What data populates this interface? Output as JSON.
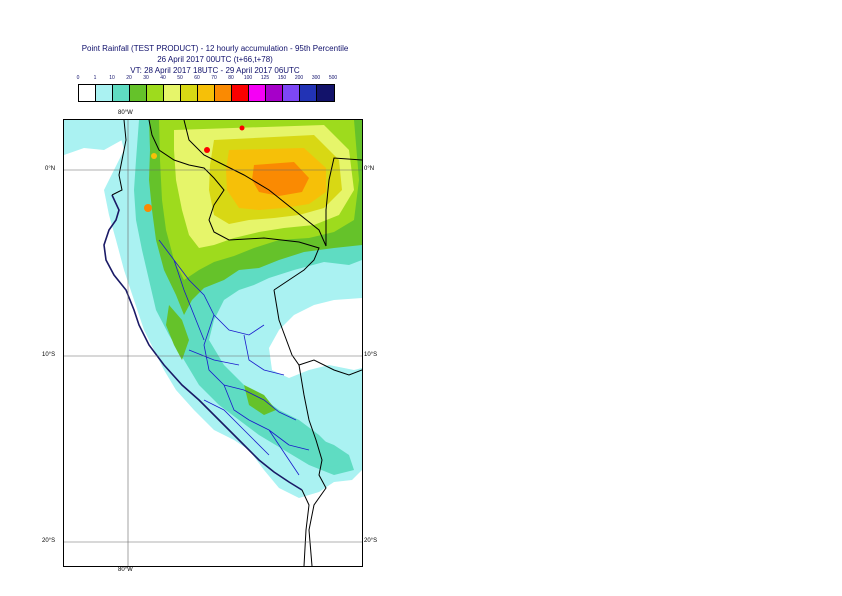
{
  "header": {
    "line1": "Point Rainfall (TEST PRODUCT) - 12 hourly accumulation - 95th Percentile",
    "line2": "26 April 2017 00UTC (t+66,t+78)",
    "line3": "VT: 28 April 2017 18UTC - 29 April 2017 06UTC"
  },
  "legend": {
    "thresholds": [
      "0",
      "1",
      "10",
      "20",
      "30",
      "40",
      "50",
      "60",
      "70",
      "80",
      "100",
      "125",
      "150",
      "200",
      "300",
      "500"
    ],
    "colors": [
      "#ffffff",
      "#aaf2f2",
      "#5fdcc2",
      "#65c22a",
      "#9edb1d",
      "#e6f56a",
      "#d8d814",
      "#f6c008",
      "#fa8a02",
      "#fb0000",
      "#f500f5",
      "#a600c9",
      "#7d47f5",
      "#2233b5",
      "#12126a"
    ]
  },
  "axes": {
    "lon_top": "80°W",
    "lon_bottom": "80°W",
    "lat_0_left": "0°N",
    "lat_0_right": "0°N",
    "lat_10_left": "10°S",
    "lat_10_right": "10°S",
    "lat_20_left": "20°S",
    "lat_20_right": "20°S"
  },
  "map": {
    "region": "Peru",
    "sea_color": "#ffffff",
    "low_rain_color": "#aaf2f2"
  }
}
